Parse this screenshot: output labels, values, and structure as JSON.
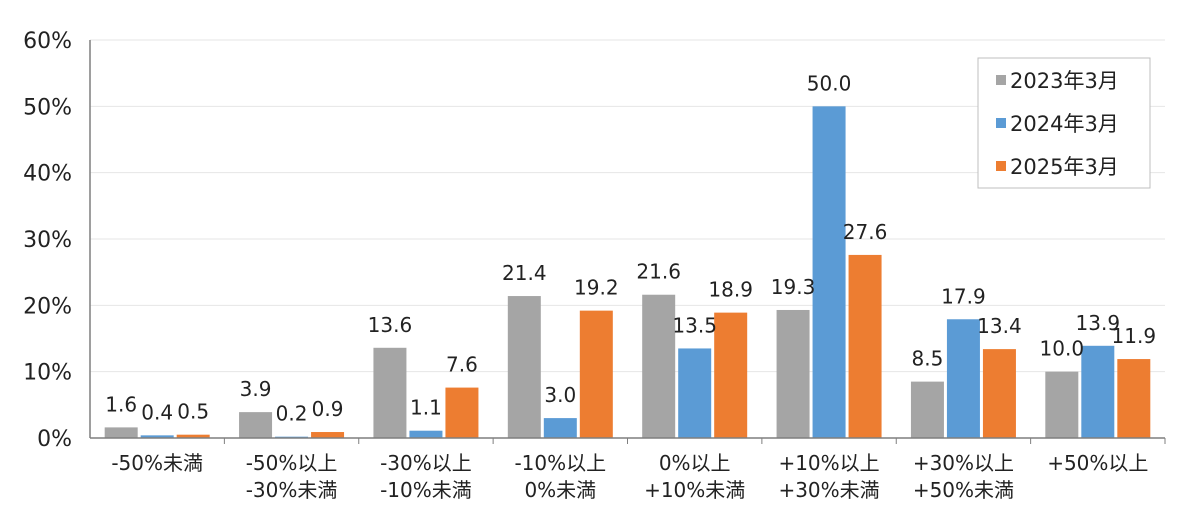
{
  "chart_data": {
    "type": "bar",
    "categories": [
      [
        "-50%未満"
      ],
      [
        "-50%以上",
        "-30%未満"
      ],
      [
        "-30%以上",
        "-10%未満"
      ],
      [
        "-10%以上",
        "0%未満"
      ],
      [
        "0%以上",
        "+10%未満"
      ],
      [
        "+10%以上",
        "+30%未満"
      ],
      [
        "+30%以上",
        "+50%未満"
      ],
      [
        "+50%以上"
      ]
    ],
    "series": [
      {
        "name": "2023年3月",
        "color": "#a5a5a5",
        "values": [
          "1.6",
          "3.9",
          "13.6",
          "21.4",
          "21.6",
          "19.3",
          "8.5",
          "10.0"
        ]
      },
      {
        "name": "2024年3月",
        "color": "#5b9bd5",
        "values": [
          "0.4",
          "0.2",
          "1.1",
          "3.0",
          "13.5",
          "50.0",
          "17.9",
          "13.9"
        ]
      },
      {
        "name": "2025年3月",
        "color": "#ed7d31",
        "values": [
          "0.5",
          "0.9",
          "7.6",
          "19.2",
          "18.9",
          "27.6",
          "13.4",
          "11.9"
        ]
      }
    ],
    "yticks": [
      "0%",
      "10%",
      "20%",
      "30%",
      "40%",
      "50%",
      "60%"
    ],
    "ylim": [
      0,
      60
    ],
    "grid": true,
    "legend_position": "top-right"
  }
}
